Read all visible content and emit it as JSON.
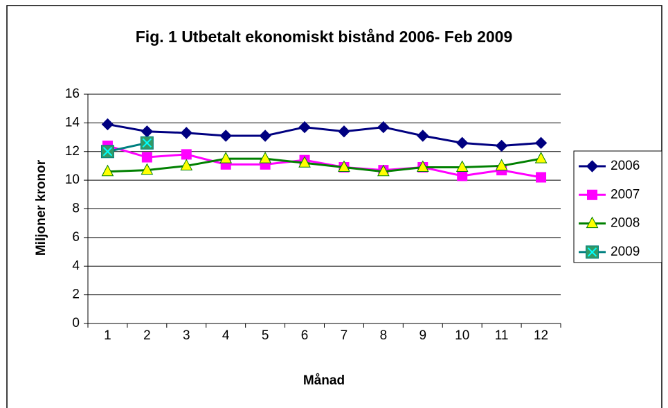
{
  "chart_data": {
    "type": "line",
    "title": "Fig. 1 Utbetalt ekonomiskt bistånd 2006- Feb 2009",
    "x_label": "Månad",
    "y_label": "Miljoner kronor",
    "categories": [
      1,
      2,
      3,
      4,
      5,
      6,
      7,
      8,
      9,
      10,
      11,
      12
    ],
    "series": [
      {
        "name": "2006",
        "color": "#000080",
        "marker": "diamond",
        "marker_fill": "#000080",
        "values": [
          13.9,
          13.4,
          13.3,
          13.1,
          13.1,
          13.7,
          13.4,
          13.7,
          13.1,
          12.6,
          12.4,
          12.6
        ]
      },
      {
        "name": "2007",
        "color": "#ff00ff",
        "marker": "square",
        "marker_fill": "#ff00ff",
        "values": [
          12.4,
          11.6,
          11.8,
          11.1,
          11.1,
          11.4,
          10.9,
          10.7,
          10.9,
          10.3,
          10.7,
          10.2
        ]
      },
      {
        "name": "2008",
        "color": "#008000",
        "marker": "triangle",
        "marker_fill": "#ffff00",
        "values": [
          10.6,
          10.7,
          11.0,
          11.5,
          11.5,
          11.2,
          10.9,
          10.6,
          10.9,
          10.9,
          11.0,
          11.5
        ]
      },
      {
        "name": "2009",
        "color": "#008080",
        "marker": "xsquare",
        "marker_fill": "#339966",
        "values": [
          12.0,
          12.6,
          null,
          null,
          null,
          null,
          null,
          null,
          null,
          null,
          null,
          null
        ]
      }
    ],
    "ylim": [
      0,
      16
    ],
    "yticks": [
      0,
      2,
      4,
      6,
      8,
      10,
      12,
      14,
      16
    ],
    "grid": true,
    "legend": "right"
  }
}
